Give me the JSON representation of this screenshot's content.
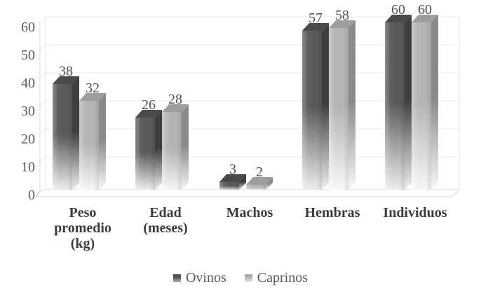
{
  "chart_data": {
    "type": "bar",
    "style": "3d-clustered-column",
    "title": "",
    "categories": [
      {
        "slug": "peso-promedio-kg",
        "lines": [
          "Peso",
          "promedio",
          "(kg)"
        ]
      },
      {
        "slug": "edad-meses",
        "lines": [
          "Edad",
          "(meses)"
        ]
      },
      {
        "slug": "machos",
        "lines": [
          "Machos"
        ]
      },
      {
        "slug": "hembras",
        "lines": [
          "Hembras"
        ]
      },
      {
        "slug": "individuos",
        "lines": [
          "Individuos"
        ]
      }
    ],
    "series": [
      {
        "name": "Ovinos",
        "values": [
          38,
          26,
          3,
          57,
          60
        ],
        "colors": {
          "front": "#5a5a5a",
          "top": "#4a4a4a",
          "side": "#3e3e3e",
          "fade": "#efefef",
          "legend_top": "#4a4a4a",
          "legend_bottom": "#b0b0b0"
        }
      },
      {
        "name": "Caprinos",
        "values": [
          32,
          28,
          2,
          58,
          60
        ],
        "colors": {
          "front": "#b5b5b5",
          "top": "#9e9e9e",
          "side": "#8a8a8a",
          "fade": "#f8f8f8",
          "legend_top": "#9e9e9e",
          "legend_bottom": "#e6e6e6"
        }
      }
    ],
    "y_axis": {
      "min": 0,
      "max": 60,
      "ticks": [
        0,
        10,
        20,
        30,
        40,
        50,
        60
      ]
    },
    "grid": true,
    "data_labels_shown": true,
    "legend": {
      "position": "bottom",
      "entries": [
        "Ovinos",
        "Caprinos"
      ]
    }
  },
  "colors": {
    "gridline": "#ebebeb",
    "wall_edge": "#e3e3e3",
    "axis_line": "#dcdcdc",
    "floor_edge": "#d0d7e2",
    "tick_text": "#595959",
    "data_label_text": "#4f4f4f",
    "category_text": "#3c3c3c",
    "legend_text": "#595959"
  }
}
